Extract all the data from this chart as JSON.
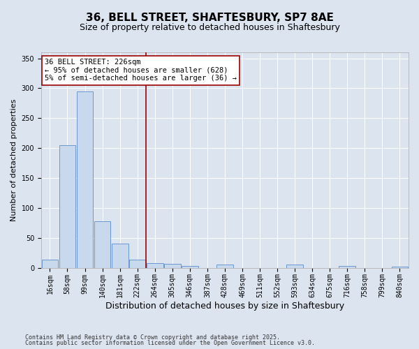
{
  "title": "36, BELL STREET, SHAFTESBURY, SP7 8AE",
  "subtitle": "Size of property relative to detached houses in Shaftesbury",
  "xlabel": "Distribution of detached houses by size in Shaftesbury",
  "ylabel": "Number of detached properties",
  "categories": [
    "16sqm",
    "58sqm",
    "99sqm",
    "140sqm",
    "181sqm",
    "222sqm",
    "264sqm",
    "305sqm",
    "346sqm",
    "387sqm",
    "428sqm",
    "469sqm",
    "511sqm",
    "552sqm",
    "593sqm",
    "634sqm",
    "675sqm",
    "716sqm",
    "758sqm",
    "799sqm",
    "840sqm"
  ],
  "values": [
    13,
    205,
    295,
    78,
    40,
    13,
    8,
    6,
    3,
    0,
    5,
    0,
    0,
    0,
    5,
    0,
    0,
    3,
    0,
    0,
    2
  ],
  "bar_color": "#c8d9ee",
  "bar_edge_color": "#5b8cc8",
  "vline_x_idx": 5,
  "vline_color": "#9b0000",
  "annotation_line1": "36 BELL STREET: 226sqm",
  "annotation_line2": "← 95% of detached houses are smaller (628)",
  "annotation_line3": "5% of semi-detached houses are larger (36) →",
  "annotation_box_color": "#ffffff",
  "annotation_box_edge_color": "#9b0000",
  "ylim": [
    0,
    360
  ],
  "yticks": [
    0,
    50,
    100,
    150,
    200,
    250,
    300,
    350
  ],
  "background_color": "#dce4f0",
  "plot_background_color": "#dce4f0",
  "footer_line1": "Contains HM Land Registry data © Crown copyright and database right 2025.",
  "footer_line2": "Contains public sector information licensed under the Open Government Licence v3.0.",
  "title_fontsize": 11,
  "subtitle_fontsize": 9,
  "xlabel_fontsize": 9,
  "ylabel_fontsize": 8,
  "tick_fontsize": 7,
  "annotation_fontsize": 7.5,
  "footer_fontsize": 6
}
